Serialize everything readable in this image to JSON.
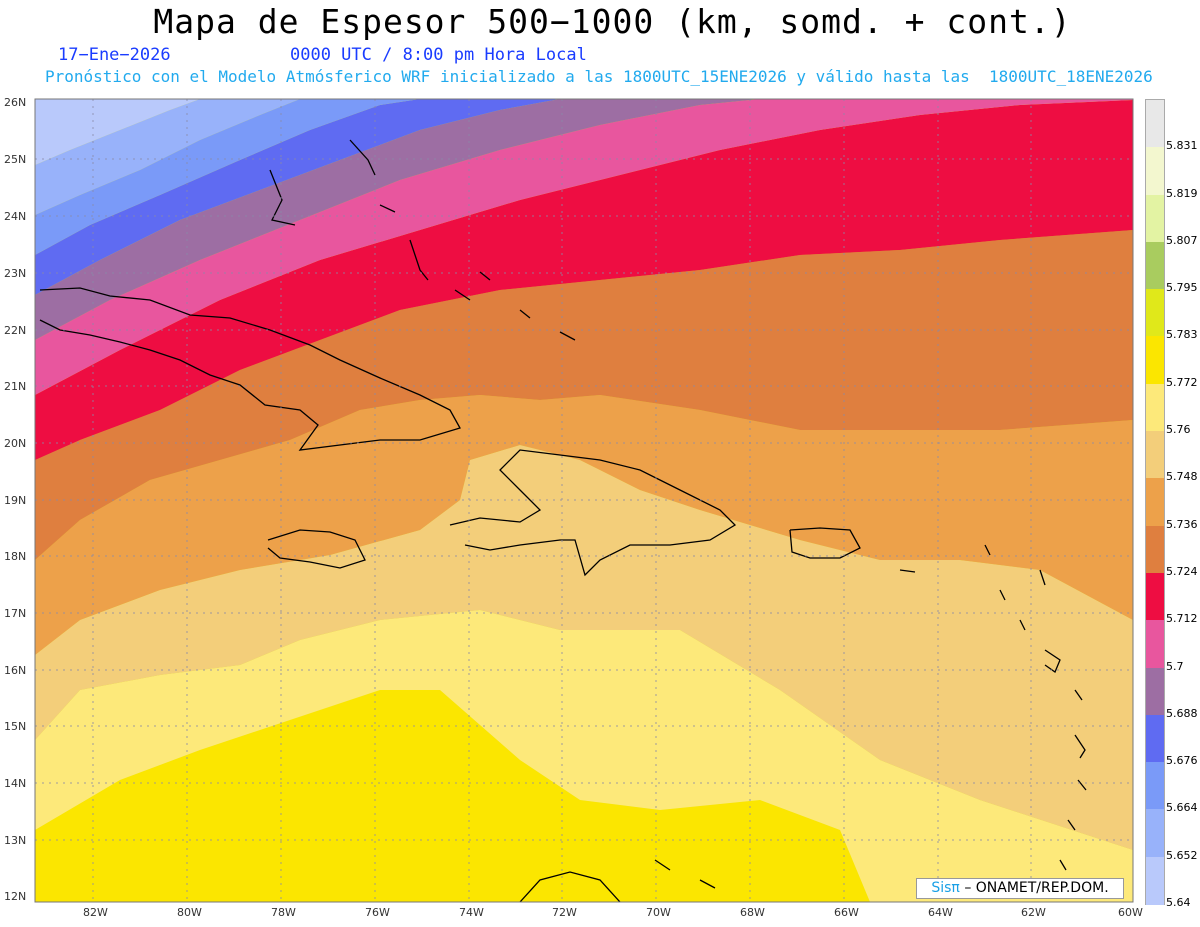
{
  "header": {
    "title": "Mapa de Espesor 500−1000 (km, somd. + cont.)",
    "date": "17−Ene−2026",
    "time": "0000 UTC / 8:00 pm Hora Local",
    "subtitle": "Pronóstico con el Modelo Atmósferico WRF inicializado a las 1800UTC_15ENE2026 y válido hasta las  1800UTC_18ENE2026"
  },
  "axes": {
    "lat_labels": [
      "26N",
      "25N",
      "24N",
      "23N",
      "22N",
      "21N",
      "20N",
      "19N",
      "18N",
      "17N",
      "16N",
      "15N",
      "14N",
      "13N",
      "12N"
    ],
    "lon_labels": [
      "82W",
      "80W",
      "78W",
      "76W",
      "74W",
      "72W",
      "70W",
      "68W",
      "66W",
      "64W",
      "62W",
      "60W"
    ]
  },
  "colorbar": {
    "labels": [
      "5.831",
      "5.819",
      "5.807",
      "5.795",
      "5.783",
      "5.772",
      "5.76",
      "5.748",
      "5.736",
      "5.724",
      "5.712",
      "5.7",
      "5.688",
      "5.676",
      "5.664",
      "5.652",
      "5.64"
    ],
    "colors": [
      "#e8e8e8",
      "#f3f7cf",
      "#e3f3a3",
      "#a9cc5f",
      "#e0e81a",
      "#fbe600",
      "#fde97a",
      "#f3ce7a",
      "#eda14a",
      "#df7f3f",
      "#ee0d42",
      "#e8569e",
      "#9d6ea3",
      "#5f6bf2",
      "#7a9af8",
      "#98b2fa",
      "#b9c9fb"
    ]
  },
  "credit": {
    "brand": "Sisπ",
    "text": "– ONAMET/REP.DOM."
  }
}
